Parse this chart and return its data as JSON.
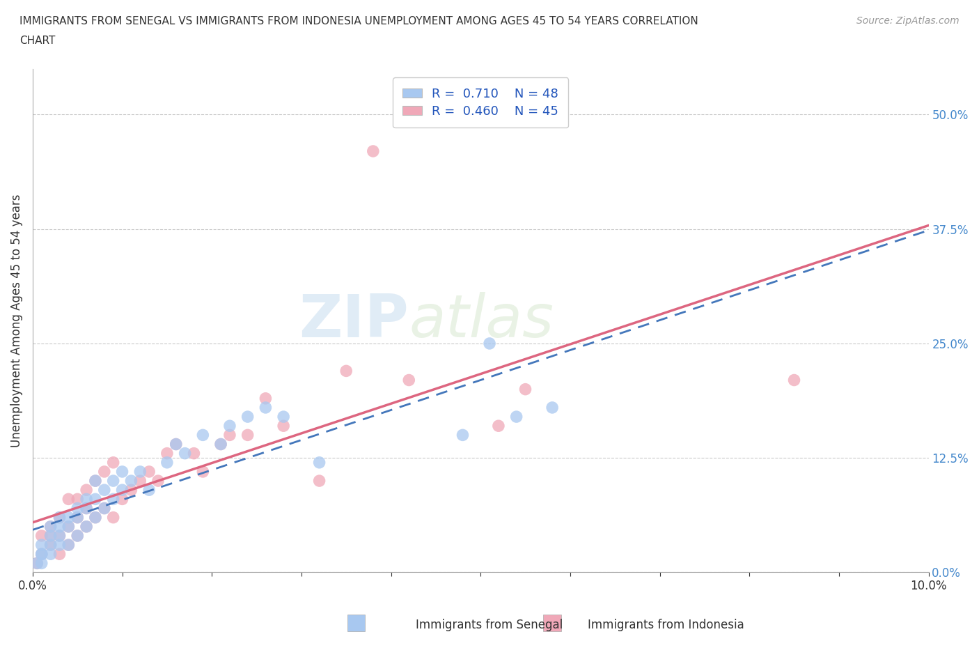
{
  "title_line1": "IMMIGRANTS FROM SENEGAL VS IMMIGRANTS FROM INDONESIA UNEMPLOYMENT AMONG AGES 45 TO 54 YEARS CORRELATION",
  "title_line2": "CHART",
  "source": "Source: ZipAtlas.com",
  "ylabel": "Unemployment Among Ages 45 to 54 years",
  "xlim": [
    0.0,
    0.1
  ],
  "ylim": [
    0.0,
    0.55
  ],
  "xticks": [
    0.0,
    0.01,
    0.02,
    0.03,
    0.04,
    0.05,
    0.06,
    0.07,
    0.08,
    0.09,
    0.1
  ],
  "xtick_labels_show": [
    "0.0%",
    "",
    "",
    "",
    "",
    "",
    "",
    "",
    "",
    "",
    "10.0%"
  ],
  "ytick_labels": [
    "0.0%",
    "12.5%",
    "25.0%",
    "37.5%",
    "50.0%"
  ],
  "ytick_values": [
    0.0,
    0.125,
    0.25,
    0.375,
    0.5
  ],
  "senegal_R": 0.71,
  "senegal_N": 48,
  "indonesia_R": 0.46,
  "indonesia_N": 45,
  "senegal_color": "#a8c8f0",
  "indonesia_color": "#f0a8b8",
  "senegal_line_color": "#4477bb",
  "indonesia_line_color": "#dd6680",
  "background_color": "#ffffff",
  "legend_label1": "Immigrants from Senegal",
  "legend_label2": "Immigrants from Indonesia",
  "senegal_x": [
    0.0005,
    0.001,
    0.001,
    0.001,
    0.001,
    0.002,
    0.002,
    0.002,
    0.002,
    0.003,
    0.003,
    0.003,
    0.003,
    0.004,
    0.004,
    0.004,
    0.005,
    0.005,
    0.005,
    0.006,
    0.006,
    0.006,
    0.007,
    0.007,
    0.007,
    0.008,
    0.008,
    0.009,
    0.009,
    0.01,
    0.01,
    0.011,
    0.012,
    0.013,
    0.015,
    0.016,
    0.017,
    0.019,
    0.021,
    0.022,
    0.024,
    0.026,
    0.028,
    0.032,
    0.048,
    0.051,
    0.054,
    0.058
  ],
  "senegal_y": [
    0.01,
    0.01,
    0.02,
    0.02,
    0.03,
    0.02,
    0.03,
    0.04,
    0.05,
    0.03,
    0.04,
    0.05,
    0.06,
    0.03,
    0.05,
    0.06,
    0.04,
    0.06,
    0.07,
    0.05,
    0.07,
    0.08,
    0.06,
    0.08,
    0.1,
    0.07,
    0.09,
    0.08,
    0.1,
    0.09,
    0.11,
    0.1,
    0.11,
    0.09,
    0.12,
    0.14,
    0.13,
    0.15,
    0.14,
    0.16,
    0.17,
    0.18,
    0.17,
    0.12,
    0.15,
    0.25,
    0.17,
    0.18
  ],
  "indonesia_x": [
    0.0005,
    0.001,
    0.001,
    0.002,
    0.002,
    0.002,
    0.003,
    0.003,
    0.003,
    0.004,
    0.004,
    0.004,
    0.005,
    0.005,
    0.005,
    0.006,
    0.006,
    0.006,
    0.007,
    0.007,
    0.008,
    0.008,
    0.009,
    0.009,
    0.01,
    0.011,
    0.012,
    0.013,
    0.014,
    0.015,
    0.016,
    0.018,
    0.019,
    0.021,
    0.022,
    0.024,
    0.026,
    0.028,
    0.032,
    0.035,
    0.038,
    0.042,
    0.052,
    0.055,
    0.085
  ],
  "indonesia_y": [
    0.01,
    0.02,
    0.04,
    0.03,
    0.04,
    0.05,
    0.02,
    0.04,
    0.06,
    0.03,
    0.05,
    0.08,
    0.04,
    0.06,
    0.08,
    0.05,
    0.07,
    0.09,
    0.06,
    0.1,
    0.07,
    0.11,
    0.06,
    0.12,
    0.08,
    0.09,
    0.1,
    0.11,
    0.1,
    0.13,
    0.14,
    0.13,
    0.11,
    0.14,
    0.15,
    0.15,
    0.19,
    0.16,
    0.1,
    0.22,
    0.46,
    0.21,
    0.16,
    0.2,
    0.21
  ]
}
